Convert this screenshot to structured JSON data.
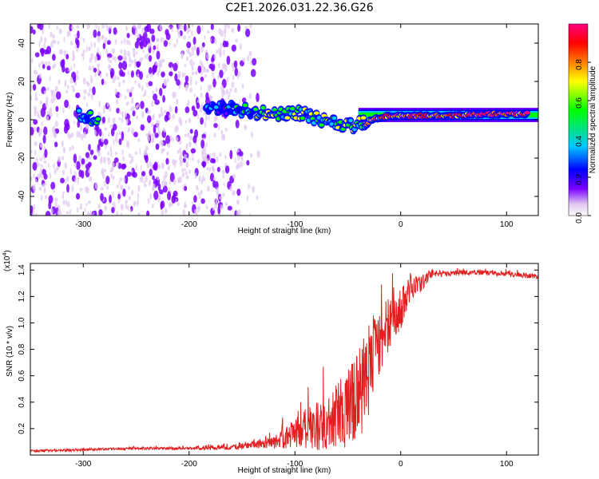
{
  "figure_title": "C2E1.2026.031.22.36.G26",
  "colors": {
    "snr_line": "#e02020",
    "axis": "#000000",
    "colormap": [
      "#e0c8f0",
      "#7a00ff",
      "#0000ff",
      "#00c8ff",
      "#00ff00",
      "#ffff00",
      "#ff8000",
      "#ff0000",
      "#ff0080"
    ]
  },
  "chart_data": [
    {
      "type": "heatmap",
      "title": "",
      "xlabel": "Height of straight line (km)",
      "ylabel": "Frequency (Hz)",
      "xlim": [
        -350,
        130
      ],
      "ylim": [
        -50,
        50
      ],
      "xticks": [
        -300,
        -200,
        -100,
        0,
        100
      ],
      "yticks": [
        -40,
        -20,
        0,
        20,
        40
      ],
      "colorbar": {
        "label": "Normalized spectral amplitude",
        "range": [
          0,
          1
        ],
        "ticks": [
          "0.0",
          "0.2",
          "0.4",
          "0.6",
          "0.8"
        ],
        "tick_values": [
          0.0,
          0.2,
          0.4,
          0.6,
          0.8
        ]
      },
      "signal_track": [
        {
          "x": -305,
          "f": 2,
          "amp": 0.4
        },
        {
          "x": -295,
          "f": 1,
          "amp": 0.45
        },
        {
          "x": -180,
          "f": 5,
          "amp": 0.3
        },
        {
          "x": -160,
          "f": 6,
          "amp": 0.35
        },
        {
          "x": -140,
          "f": 4,
          "amp": 0.45
        },
        {
          "x": -120,
          "f": 3,
          "amp": 0.55
        },
        {
          "x": -100,
          "f": 4,
          "amp": 0.5
        },
        {
          "x": -80,
          "f": 1,
          "amp": 0.5
        },
        {
          "x": -60,
          "f": -2,
          "amp": 0.55
        },
        {
          "x": -45,
          "f": -3,
          "amp": 0.5
        },
        {
          "x": -30,
          "f": 0,
          "amp": 0.65
        },
        {
          "x": -10,
          "f": 2,
          "amp": 0.75
        },
        {
          "x": 10,
          "f": 2,
          "amp": 0.85
        },
        {
          "x": 40,
          "f": 2,
          "amp": 0.8
        },
        {
          "x": 80,
          "f": 3,
          "amp": 0.9
        },
        {
          "x": 120,
          "f": 3,
          "amp": 0.85
        }
      ],
      "noise_region": {
        "x_start": -350,
        "x_end": -150,
        "f_range": [
          -50,
          50
        ]
      }
    },
    {
      "type": "line",
      "title": "",
      "xlabel": "Height of straight line (km)",
      "ylabel": "SNR (10 * v/v)",
      "scale_label": "(x10",
      "scale_exponent": "4",
      "scale_suffix": ")",
      "xlim": [
        -350,
        130
      ],
      "ylim": [
        0,
        1.45
      ],
      "xticks": [
        -300,
        -200,
        -100,
        0,
        100
      ],
      "yticks": [
        0.2,
        0.4,
        0.6,
        0.8,
        1.0,
        1.2,
        1.4
      ],
      "ytick_labels": [
        "0.2",
        "0.4",
        "0.6",
        "0.8",
        "1.0",
        "1.2",
        "1.4"
      ],
      "series": [
        {
          "name": "SNR",
          "x": [
            -350,
            -300,
            -250,
            -200,
            -180,
            -160,
            -140,
            -120,
            -110,
            -100,
            -90,
            -80,
            -70,
            -60,
            -50,
            -40,
            -35,
            -30,
            -25,
            -20,
            -15,
            -10,
            -5,
            0,
            5,
            10,
            20,
            30,
            40,
            60,
            80,
            100,
            120,
            130
          ],
          "values": [
            0.03,
            0.04,
            0.05,
            0.05,
            0.06,
            0.06,
            0.08,
            0.1,
            0.13,
            0.17,
            0.2,
            0.22,
            0.25,
            0.3,
            0.35,
            0.45,
            0.55,
            0.65,
            0.8,
            0.85,
            0.95,
            1.0,
            1.05,
            1.1,
            1.2,
            1.25,
            1.3,
            1.38,
            1.37,
            1.38,
            1.38,
            1.37,
            1.36,
            1.35
          ],
          "noise_amplitude": [
            0.01,
            0.01,
            0.01,
            0.01,
            0.02,
            0.02,
            0.03,
            0.05,
            0.08,
            0.12,
            0.15,
            0.18,
            0.22,
            0.25,
            0.3,
            0.35,
            0.38,
            0.35,
            0.3,
            0.25,
            0.22,
            0.2,
            0.18,
            0.15,
            0.12,
            0.1,
            0.06,
            0.03,
            0.02,
            0.02,
            0.02,
            0.02,
            0.02,
            0.02
          ]
        }
      ]
    }
  ]
}
